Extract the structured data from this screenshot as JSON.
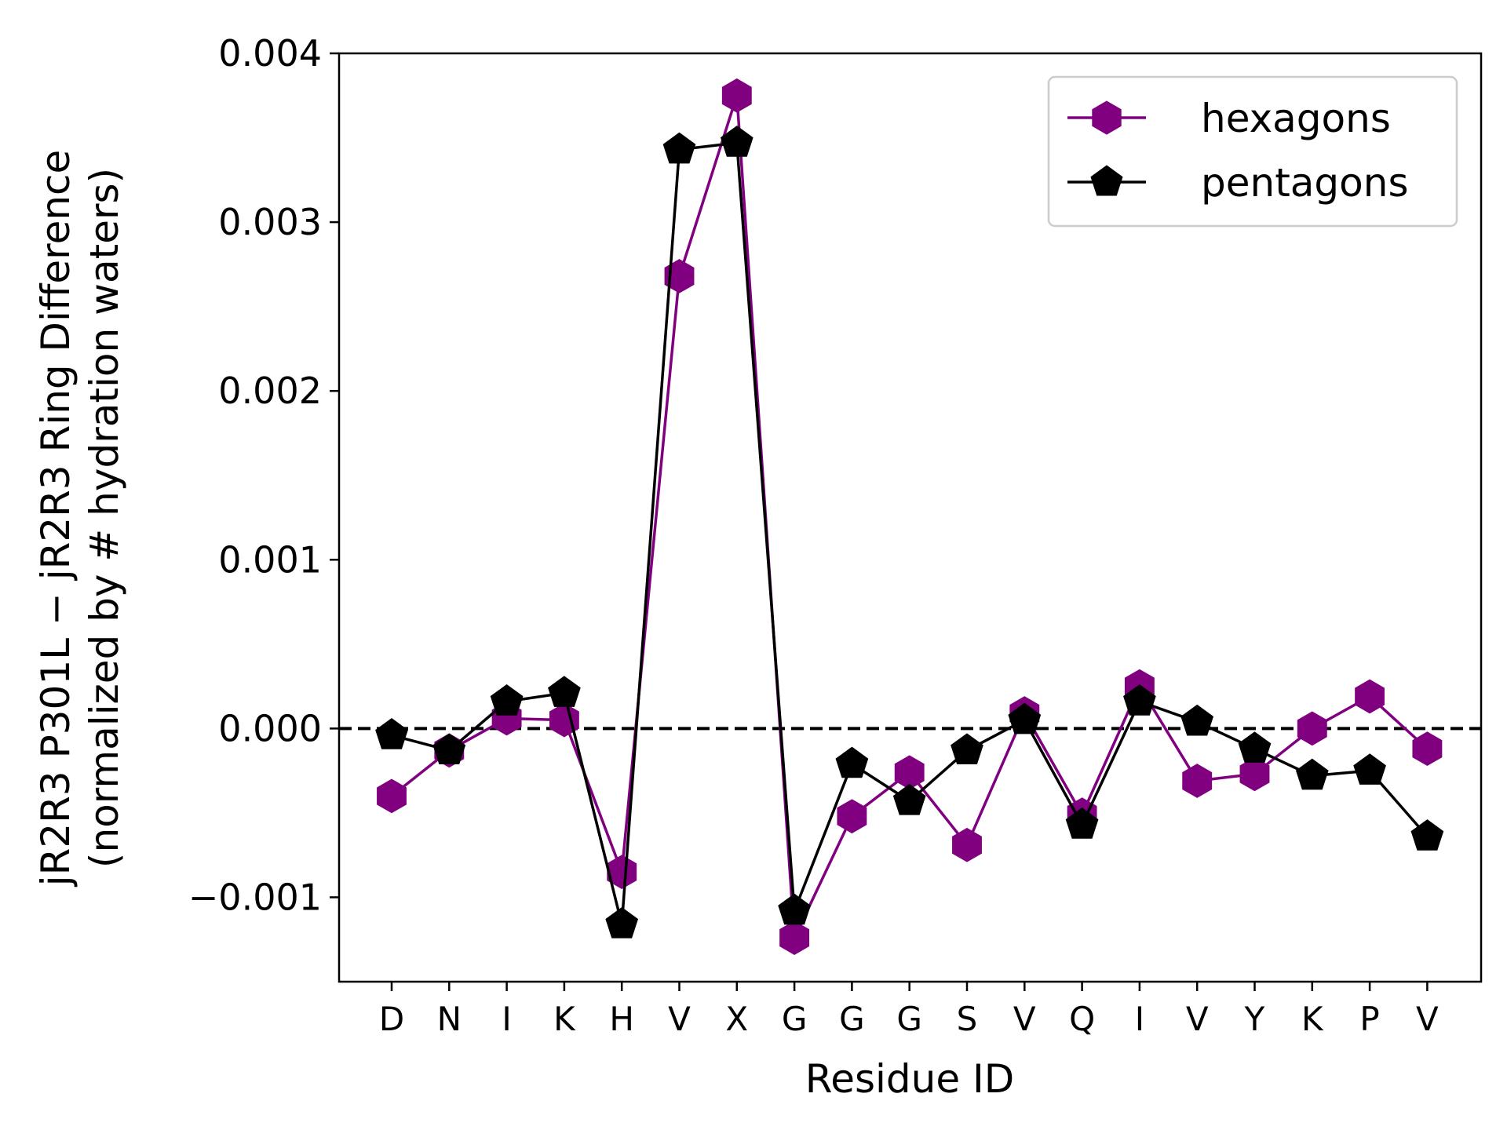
{
  "chart_data": {
    "type": "line",
    "title": "",
    "xlabel": "Residue ID",
    "ylabel_line1": "jR2R3 P301L − jR2R3 Ring Difference",
    "ylabel_line2": "(normalized by # hydration waters)",
    "categories": [
      "D",
      "N",
      "I",
      "K",
      "H",
      "V",
      "X",
      "G",
      "G",
      "G",
      "S",
      "V",
      "Q",
      "I",
      "V",
      "Y",
      "K",
      "P",
      "V"
    ],
    "ylim": [
      -0.0015,
      0.004
    ],
    "yticks": [
      {
        "value": 0.004,
        "label": "0.004"
      },
      {
        "value": 0.003,
        "label": "0.003"
      },
      {
        "value": 0.002,
        "label": "0.002"
      },
      {
        "value": 0.001,
        "label": "0.001"
      },
      {
        "value": 0.0,
        "label": "0.000"
      },
      {
        "value": -0.001,
        "label": "−0.001"
      }
    ],
    "reference_line": {
      "y": 0.0,
      "style": "dashed",
      "color": "#000000"
    },
    "legend_position": "top-right",
    "grid": false,
    "series": [
      {
        "name": "hexagons",
        "marker": "hexagon",
        "color": "#800080",
        "values": [
          -0.0004,
          -0.00013,
          6e-05,
          5e-05,
          -0.00085,
          0.00268,
          0.00375,
          -0.00124,
          -0.00052,
          -0.00026,
          -0.00069,
          9e-05,
          -0.00051,
          0.00025,
          -0.00031,
          -0.00027,
          0.0,
          0.00019,
          -0.00012
        ]
      },
      {
        "name": "pentagons",
        "marker": "pentagon",
        "color": "#000000",
        "values": [
          -4e-05,
          -0.00013,
          0.00016,
          0.00021,
          -0.00116,
          0.00343,
          0.00347,
          -0.00108,
          -0.00021,
          -0.00043,
          -0.00013,
          5e-05,
          -0.00057,
          0.00016,
          4e-05,
          -0.00012,
          -0.00028,
          -0.00025,
          -0.00064
        ]
      }
    ]
  }
}
